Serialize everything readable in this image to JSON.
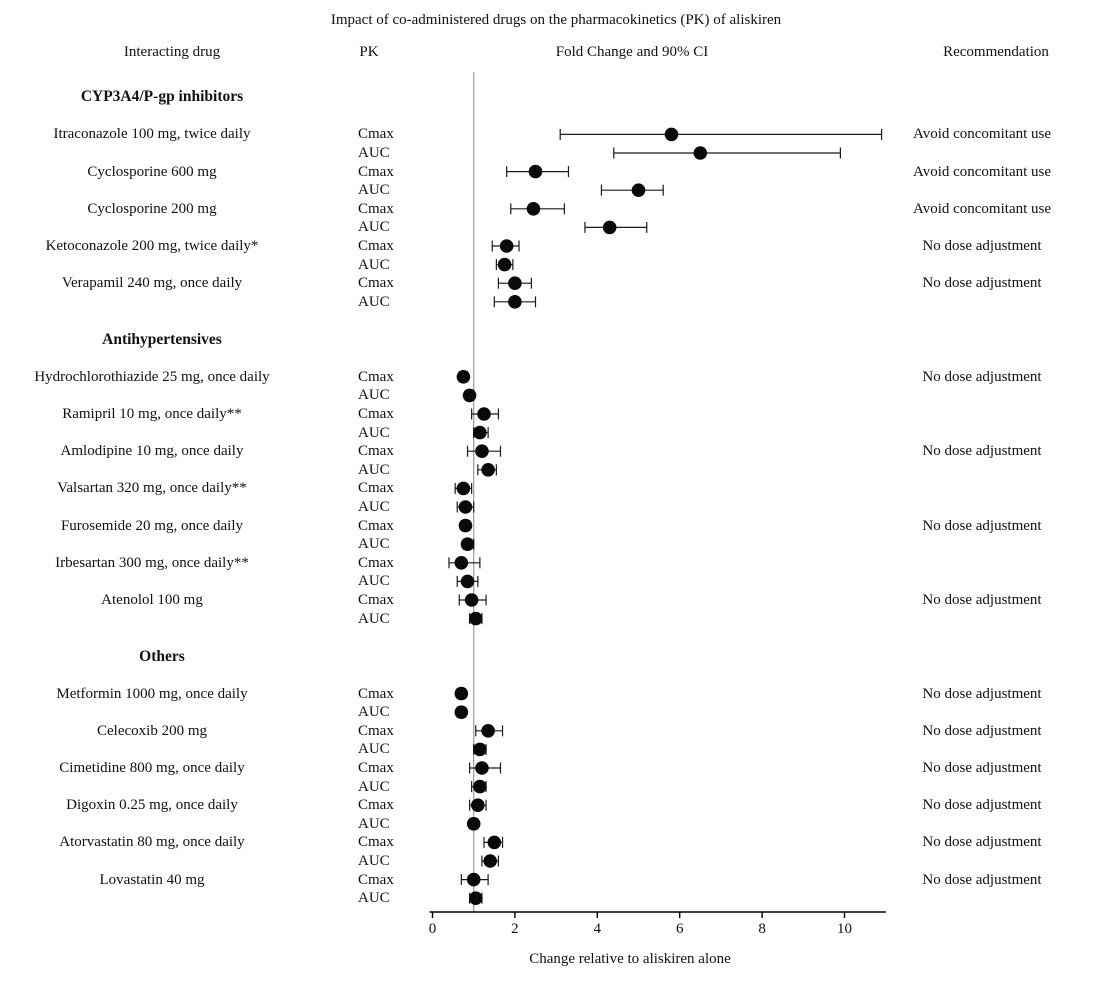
{
  "chart_data": {
    "type": "scatter",
    "variant": "forest-plot",
    "title": "Impact of co-administered drugs on the pharmacokinetics (PK) of aliskiren",
    "xlabel": "Change relative to aliskiren alone",
    "columns": {
      "interacting_drug": "Interacting drug",
      "pk": "PK",
      "fold_change": "Fold Change and 90% CI",
      "recommendation": "Recommendation"
    },
    "x_ticks": [
      0,
      2,
      4,
      6,
      8,
      10
    ],
    "xlim": [
      0,
      11
    ],
    "reference_line_x": 1,
    "grid": "off",
    "colors": {
      "point": "#0a0a0a",
      "ci": "#1a1a1a",
      "reference_line": "#9a9a9a",
      "axis": "#000000"
    },
    "groups": [
      {
        "name": "CYP3A4/P-gp inhibitors",
        "drugs": [
          {
            "label": "Itraconazole 100 mg, twice daily",
            "recommendation": "Avoid concomitant use",
            "measures": [
              {
                "pk": "Cmax",
                "value": 5.8,
                "ci": [
                  3.1,
                  10.9
                ]
              },
              {
                "pk": "AUC",
                "value": 6.5,
                "ci": [
                  4.4,
                  9.9
                ]
              }
            ]
          },
          {
            "label": "Cyclosporine 600 mg",
            "recommendation": "Avoid concomitant use",
            "measures": [
              {
                "pk": "Cmax",
                "value": 2.5,
                "ci": [
                  1.8,
                  3.3
                ]
              },
              {
                "pk": "AUC",
                "value": 5.0,
                "ci": [
                  4.1,
                  5.6
                ]
              }
            ]
          },
          {
            "label": "Cyclosporine 200 mg",
            "recommendation": "Avoid concomitant use",
            "measures": [
              {
                "pk": "Cmax",
                "value": 2.45,
                "ci": [
                  1.9,
                  3.2
                ]
              },
              {
                "pk": "AUC",
                "value": 4.3,
                "ci": [
                  3.7,
                  5.2
                ]
              }
            ]
          },
          {
            "label": "Ketoconazole 200 mg, twice daily*",
            "recommendation": "No dose adjustment",
            "measures": [
              {
                "pk": "Cmax",
                "value": 1.8,
                "ci": [
                  1.45,
                  2.1
                ]
              },
              {
                "pk": "AUC",
                "value": 1.75,
                "ci": [
                  1.55,
                  1.95
                ]
              }
            ]
          },
          {
            "label": "Verapamil 240 mg, once daily",
            "recommendation": "No dose adjustment",
            "measures": [
              {
                "pk": "Cmax",
                "value": 2.0,
                "ci": [
                  1.6,
                  2.4
                ]
              },
              {
                "pk": "AUC",
                "value": 2.0,
                "ci": [
                  1.5,
                  2.5
                ]
              }
            ]
          }
        ]
      },
      {
        "name": "Antihypertensives",
        "drugs": [
          {
            "label": "Hydrochlorothiazide 25 mg, once daily",
            "recommendation": "No dose adjustment",
            "measures": [
              {
                "pk": "Cmax",
                "value": 0.75,
                "ci": [
                  0.65,
                  0.85
                ]
              },
              {
                "pk": "AUC",
                "value": 0.9,
                "ci": [
                  0.8,
                  1.0
                ]
              }
            ]
          },
          {
            "label": "Ramipril 10 mg, once daily**",
            "recommendation": "",
            "measures": [
              {
                "pk": "Cmax",
                "value": 1.25,
                "ci": [
                  0.95,
                  1.6
                ]
              },
              {
                "pk": "AUC",
                "value": 1.15,
                "ci": [
                  1.0,
                  1.35
                ]
              }
            ]
          },
          {
            "label": "Amlodipine 10 mg, once daily",
            "recommendation": "No dose adjustment",
            "measures": [
              {
                "pk": "Cmax",
                "value": 1.2,
                "ci": [
                  0.85,
                  1.65
                ]
              },
              {
                "pk": "AUC",
                "value": 1.35,
                "ci": [
                  1.1,
                  1.55
                ]
              }
            ]
          },
          {
            "label": "Valsartan 320 mg, once daily**",
            "recommendation": "",
            "measures": [
              {
                "pk": "Cmax",
                "value": 0.75,
                "ci": [
                  0.55,
                  0.95
                ]
              },
              {
                "pk": "AUC",
                "value": 0.8,
                "ci": [
                  0.6,
                  1.0
                ]
              }
            ]
          },
          {
            "label": "Furosemide 20 mg, once daily",
            "recommendation": "No dose adjustment",
            "measures": [
              {
                "pk": "Cmax",
                "value": 0.8,
                "ci": [
                  0.7,
                  0.9
                ]
              },
              {
                "pk": "AUC",
                "value": 0.85,
                "ci": [
                  0.75,
                  1.0
                ]
              }
            ]
          },
          {
            "label": "Irbesartan 300 mg, once daily**",
            "recommendation": "",
            "measures": [
              {
                "pk": "Cmax",
                "value": 0.7,
                "ci": [
                  0.4,
                  1.15
                ]
              },
              {
                "pk": "AUC",
                "value": 0.85,
                "ci": [
                  0.6,
                  1.1
                ]
              }
            ]
          },
          {
            "label": "Atenolol 100 mg",
            "recommendation": "No dose adjustment",
            "measures": [
              {
                "pk": "Cmax",
                "value": 0.95,
                "ci": [
                  0.65,
                  1.3
                ]
              },
              {
                "pk": "AUC",
                "value": 1.05,
                "ci": [
                  0.9,
                  1.2
                ]
              }
            ]
          }
        ]
      },
      {
        "name": "Others",
        "drugs": [
          {
            "label": "Metformin 1000 mg, once daily",
            "recommendation": "No dose adjustment",
            "measures": [
              {
                "pk": "Cmax",
                "value": 0.7,
                "ci": [
                  0.6,
                  0.8
                ]
              },
              {
                "pk": "AUC",
                "value": 0.7,
                "ci": [
                  0.6,
                  0.8
                ]
              }
            ]
          },
          {
            "label": "Celecoxib 200 mg",
            "recommendation": "No dose adjustment",
            "measures": [
              {
                "pk": "Cmax",
                "value": 1.35,
                "ci": [
                  1.05,
                  1.7
                ]
              },
              {
                "pk": "AUC",
                "value": 1.15,
                "ci": [
                  1.0,
                  1.3
                ]
              }
            ]
          },
          {
            "label": "Cimetidine 800 mg, once daily",
            "recommendation": "No dose adjustment",
            "measures": [
              {
                "pk": "Cmax",
                "value": 1.2,
                "ci": [
                  0.9,
                  1.65
                ]
              },
              {
                "pk": "AUC",
                "value": 1.15,
                "ci": [
                  0.95,
                  1.3
                ]
              }
            ]
          },
          {
            "label": "Digoxin 0.25 mg, once daily",
            "recommendation": "No dose adjustment",
            "measures": [
              {
                "pk": "Cmax",
                "value": 1.1,
                "ci": [
                  0.9,
                  1.3
                ]
              },
              {
                "pk": "AUC",
                "value": 1.0,
                "ci": [
                  0.9,
                  1.1
                ]
              }
            ]
          },
          {
            "label": "Atorvastatin 80 mg, once daily",
            "recommendation": "No dose adjustment",
            "measures": [
              {
                "pk": "Cmax",
                "value": 1.5,
                "ci": [
                  1.25,
                  1.7
                ]
              },
              {
                "pk": "AUC",
                "value": 1.4,
                "ci": [
                  1.2,
                  1.6
                ]
              }
            ]
          },
          {
            "label": "Lovastatin 40 mg",
            "recommendation": "No dose adjustment",
            "measures": [
              {
                "pk": "Cmax",
                "value": 1.0,
                "ci": [
                  0.7,
                  1.35
                ]
              },
              {
                "pk": "AUC",
                "value": 1.05,
                "ci": [
                  0.9,
                  1.2
                ]
              }
            ]
          }
        ]
      }
    ]
  }
}
